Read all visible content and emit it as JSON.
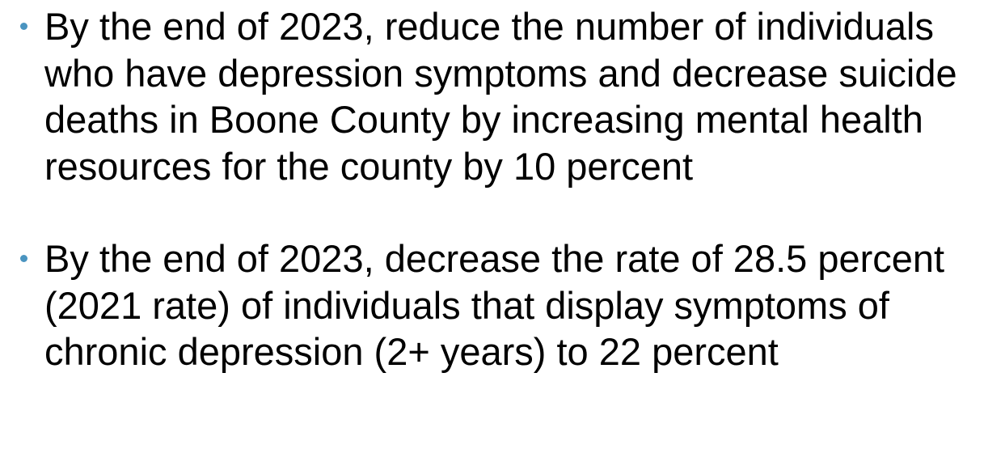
{
  "bullets": [
    "By the end of 2023, reduce the number of individuals who have depression symptoms and decrease suicide deaths in Boone County by increasing mental health resources for the county by 10 percent",
    "By the end of 2023, decrease the rate of 28.5 percent (2021 rate) of individuals that display symptoms of chronic depression (2+ years) to 22 percent"
  ]
}
